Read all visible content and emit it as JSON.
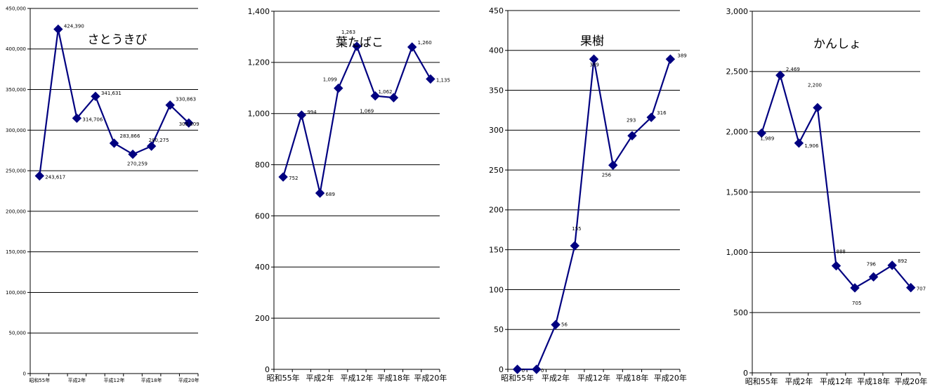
{
  "chart_data": [
    {
      "type": "line",
      "title": "さとうきび",
      "categories": [
        "昭和55年",
        "",
        "平成2年",
        "",
        "平成12年",
        "",
        "平成18年",
        "",
        "平成20年"
      ],
      "values": [
        243617,
        424390,
        314706,
        341631,
        283866,
        270259,
        280275,
        330863,
        308809
      ],
      "value_labels": [
        "243,617",
        "424,390",
        "314,706",
        "341,631",
        "283,866",
        "270,259",
        "280,275",
        "330,863",
        "308,809"
      ],
      "ylim": [
        0,
        450000
      ],
      "yticks": [
        "0",
        "50,000",
        "100,000",
        "150,000",
        "200,000",
        "250,000",
        "300,000",
        "350,000",
        "400,000",
        "450,000"
      ],
      "grid": true,
      "line_color": "#000080"
    },
    {
      "type": "line",
      "title": "葉たばこ",
      "categories": [
        "昭和55年",
        "",
        "平成2年",
        "",
        "平成12年",
        "",
        "平成18年",
        "",
        "平成20年"
      ],
      "values": [
        752,
        994,
        689,
        1099,
        1263,
        1069,
        1062,
        1260,
        1135
      ],
      "value_labels": [
        "752",
        "994",
        "689",
        "1,099",
        "1,263",
        "1,069",
        "1,062",
        "1,260",
        "1,135"
      ],
      "ylim": [
        0,
        1400
      ],
      "yticks": [
        "0",
        "200",
        "400",
        "600",
        "800",
        "1,000",
        "1,200",
        "1,400"
      ],
      "grid": true,
      "line_color": "#000080"
    },
    {
      "type": "line",
      "title": "果樹",
      "categories": [
        "昭和55年",
        "",
        "平成2年",
        "",
        "平成12年",
        "",
        "平成18年",
        "",
        "平成20年"
      ],
      "values": [
        0,
        0,
        56,
        155,
        389,
        256,
        293,
        316,
        389
      ],
      "value_labels": [
        "0",
        "0",
        "56",
        "155",
        "389",
        "256",
        "293",
        "316",
        "389"
      ],
      "ylim": [
        0,
        450
      ],
      "yticks": [
        "0",
        "50",
        "100",
        "150",
        "200",
        "250",
        "300",
        "350",
        "400",
        "450"
      ],
      "grid": true,
      "line_color": "#000080"
    },
    {
      "type": "line",
      "title": "かんしょ",
      "categories": [
        "昭和55年",
        "",
        "平成2年",
        "",
        "平成12年",
        "",
        "平成18年",
        "",
        "平成20年"
      ],
      "values": [
        1989,
        2469,
        1906,
        2200,
        888,
        705,
        796,
        892,
        707
      ],
      "value_labels": [
        "1,989",
        "2,469",
        "1,906",
        "2,200",
        "888",
        "705",
        "796",
        "892",
        "707"
      ],
      "ylim": [
        0,
        3000
      ],
      "yticks": [
        "0",
        "500",
        "1,000",
        "1,500",
        "2,000",
        "2,500",
        "3,000"
      ],
      "grid": true,
      "line_color": "#000080"
    }
  ]
}
